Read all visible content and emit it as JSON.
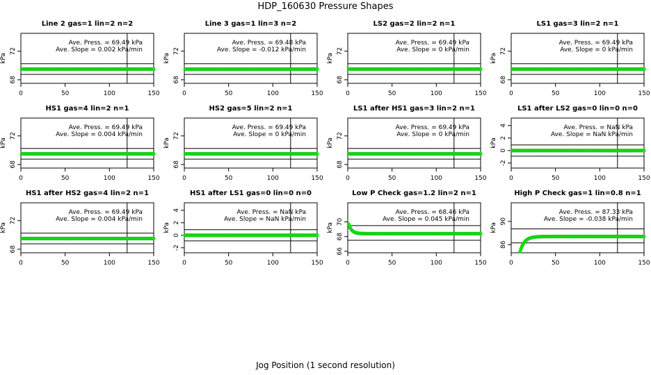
{
  "figure": {
    "title": "HDP_160630  Pressure Shapes",
    "xlabel": "Jog Position (1 second resolution)"
  },
  "colors": {
    "points": "#00ee00",
    "point_edge": "#33aa33",
    "lines": "#000000"
  },
  "chart_data": [
    {
      "type": "scatter",
      "title": "Line 2 gas=1 lin=2 n=2",
      "ylabel": "kPa",
      "yticks": [
        "68",
        "72"
      ],
      "xticks": [
        "0",
        "50",
        "100",
        "150"
      ],
      "xlim": [
        0,
        150
      ],
      "ylim": [
        67.5,
        74.5
      ],
      "hlines": [
        70.25,
        68.75
      ],
      "vline": 120,
      "ann1": "Ave. Press. = 69.49 kPa",
      "ann2": "Ave. Slope = 0.002 kPa/min",
      "series": {
        "kind": "flat",
        "x_from": 1,
        "x_to": 150,
        "y": 69.49
      }
    },
    {
      "type": "scatter",
      "title": "Line 3 gas=1 lin=3 n=2",
      "ylabel": "kPa",
      "yticks": [
        "68",
        "72"
      ],
      "xticks": [
        "0",
        "50",
        "100",
        "150"
      ],
      "xlim": [
        0,
        150
      ],
      "ylim": [
        67.5,
        74.5
      ],
      "hlines": [
        70.25,
        68.75
      ],
      "vline": 120,
      "ann1": "Ave. Press. = 69.48 kPa",
      "ann2": "Ave. Slope = -0.012 kPa/min",
      "series": {
        "kind": "flat",
        "x_from": 1,
        "x_to": 150,
        "y": 69.48
      }
    },
    {
      "type": "scatter",
      "title": "LS2 gas=2 lin=2 n=1",
      "ylabel": "kPa",
      "yticks": [
        "68",
        "72"
      ],
      "xticks": [
        "0",
        "50",
        "100",
        "150"
      ],
      "xlim": [
        0,
        150
      ],
      "ylim": [
        67.5,
        74.5
      ],
      "hlines": [
        70.25,
        68.75
      ],
      "vline": 120,
      "ann1": "Ave. Press. = 69.49 kPa",
      "ann2": "Ave. Slope = 0 kPa/min",
      "series": {
        "kind": "flat",
        "x_from": 1,
        "x_to": 150,
        "y": 69.49
      }
    },
    {
      "type": "scatter",
      "title": "LS1 gas=3 lin=2 n=1",
      "ylabel": "kPa",
      "yticks": [
        "68",
        "72"
      ],
      "xticks": [
        "0",
        "50",
        "100",
        "150"
      ],
      "xlim": [
        0,
        150
      ],
      "ylim": [
        67.5,
        74.5
      ],
      "hlines": [
        70.25,
        68.75
      ],
      "vline": 120,
      "ann1": "Ave. Press. = 69.49 kPa",
      "ann2": "Ave. Slope = 0 kPa/min",
      "series": {
        "kind": "flat",
        "x_from": 1,
        "x_to": 150,
        "y": 69.49
      }
    },
    {
      "type": "scatter",
      "title": "HS1 gas=4 lin=2 n=1",
      "ylabel": "kPa",
      "yticks": [
        "68",
        "72"
      ],
      "xticks": [
        "0",
        "50",
        "100",
        "150"
      ],
      "xlim": [
        0,
        150
      ],
      "ylim": [
        67.5,
        74.5
      ],
      "hlines": [
        70.25,
        68.75
      ],
      "vline": 120,
      "ann1": "Ave. Press. = 69.49 kPa",
      "ann2": "Ave. Slope = 0.004 kPa/min",
      "series": {
        "kind": "flat",
        "x_from": 1,
        "x_to": 150,
        "y": 69.49
      }
    },
    {
      "type": "scatter",
      "title": "HS2 gas=5 lin=2 n=1",
      "ylabel": "kPa",
      "yticks": [
        "68",
        "72"
      ],
      "xticks": [
        "0",
        "50",
        "100",
        "150"
      ],
      "xlim": [
        0,
        150
      ],
      "ylim": [
        67.5,
        74.5
      ],
      "hlines": [
        70.25,
        68.75
      ],
      "vline": 120,
      "ann1": "Ave. Press. = 69.49 kPa",
      "ann2": "Ave. Slope = 0 kPa/min",
      "series": {
        "kind": "flat",
        "x_from": 1,
        "x_to": 150,
        "y": 69.49
      }
    },
    {
      "type": "scatter",
      "title": "LS1 after HS1 gas=3 lin=2 n=1",
      "ylabel": "kPa",
      "yticks": [
        "68",
        "72"
      ],
      "xticks": [
        "0",
        "50",
        "100",
        "150"
      ],
      "xlim": [
        0,
        150
      ],
      "ylim": [
        67.5,
        74.5
      ],
      "hlines": [
        70.25,
        68.75
      ],
      "vline": 120,
      "ann1": "Ave. Press. = 69.49 kPa",
      "ann2": "Ave. Slope = 0 kPa/min",
      "series": {
        "kind": "flat",
        "x_from": 1,
        "x_to": 150,
        "y": 69.49
      }
    },
    {
      "type": "scatter",
      "title": "LS1 after LS2 gas=0 lin=0 n=0",
      "ylabel": "kPa",
      "yticks": [
        "-2",
        "0",
        "2",
        "4"
      ],
      "xticks": [
        "0",
        "50",
        "100",
        "150"
      ],
      "xlim": [
        0,
        150
      ],
      "ylim": [
        -2.8,
        5.2
      ],
      "hlines": [
        0.9,
        -0.9
      ],
      "vline": 120,
      "ann1": "Ave. Press. = NaN kPa",
      "ann2": "Ave. Slope = NaN kPa/min",
      "series": {
        "kind": "flat",
        "x_from": 1,
        "x_to": 150,
        "y": 0
      }
    },
    {
      "type": "scatter",
      "title": "HS1 after HS2 gas=4 lin=2 n=1",
      "ylabel": "kPa",
      "yticks": [
        "68",
        "72"
      ],
      "xticks": [
        "0",
        "50",
        "100",
        "150"
      ],
      "xlim": [
        0,
        150
      ],
      "ylim": [
        67.5,
        74.5
      ],
      "hlines": [
        70.25,
        68.75
      ],
      "vline": 120,
      "ann1": "Ave. Press. = 69.49 kPa",
      "ann2": "Ave. Slope = 0.004 kPa/min",
      "series": {
        "kind": "flat",
        "x_from": 1,
        "x_to": 150,
        "y": 69.49
      }
    },
    {
      "type": "scatter",
      "title": "HS1 after LS1 gas=0 lin=0 n=0",
      "ylabel": "kPa",
      "yticks": [
        "-2",
        "0",
        "2",
        "4"
      ],
      "xticks": [
        "0",
        "50",
        "100",
        "150"
      ],
      "xlim": [
        0,
        150
      ],
      "ylim": [
        -2.8,
        5.2
      ],
      "hlines": [
        0.9,
        -0.9
      ],
      "vline": 120,
      "ann1": "Ave. Press. = NaN kPa",
      "ann2": "Ave. Slope = NaN kPa/min",
      "series": {
        "kind": "flat",
        "x_from": 1,
        "x_to": 150,
        "y": 0
      }
    },
    {
      "type": "scatter",
      "title": "Low P Check gas=1.2 lin=2 n=1",
      "ylabel": "kPa",
      "yticks": [
        "66",
        "68",
        "70"
      ],
      "xticks": [
        "0",
        "50",
        "100",
        "150"
      ],
      "xlim": [
        0,
        150
      ],
      "ylim": [
        65.8,
        72.6
      ],
      "hlines": [
        69.5,
        67.5
      ],
      "vline": 120,
      "ann1": "Ave. Press. = 68.46 kPa",
      "ann2": "Ave. Slope = 0.045 kPa/min",
      "series": {
        "kind": "decay",
        "x_from": 1,
        "x_to": 150,
        "y_start": 69.7,
        "y_end": 68.4,
        "tau": 3.5
      }
    },
    {
      "type": "scatter",
      "title": "High P Check gas=1 lin=0.8 n=1",
      "ylabel": "kPa",
      "yticks": [
        "86",
        "90"
      ],
      "xticks": [
        "0",
        "50",
        "100",
        "150"
      ],
      "xlim": [
        0,
        150
      ],
      "ylim": [
        84.6,
        93.2
      ],
      "hlines": [
        88.7,
        86.3
      ],
      "vline": 120,
      "ann1": "Ave. Press. = 87.33 kPa",
      "ann2": "Ave. Slope = -0.038 kPa/min",
      "series": {
        "kind": "rise",
        "x_from": 10,
        "x_to": 150,
        "y_start": 84.8,
        "y_end": 87.4,
        "tau": 5
      }
    }
  ]
}
